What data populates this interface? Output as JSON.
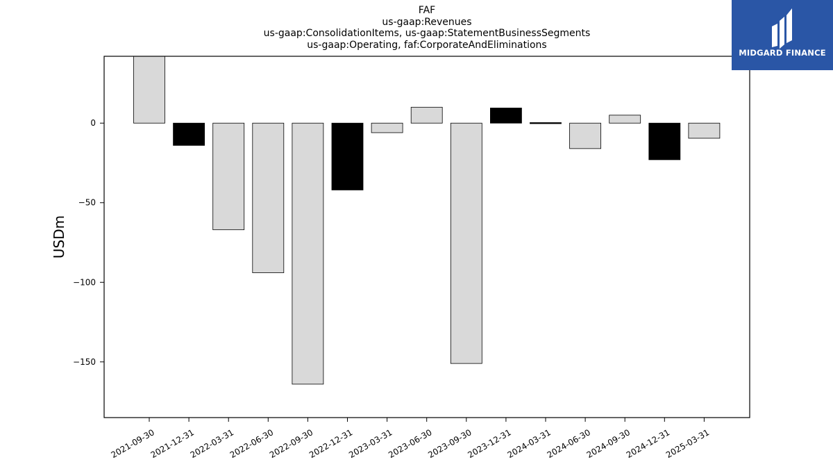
{
  "title_lines": [
    "FAF",
    "us-gaap:Revenues",
    "us-gaap:ConsolidationItems, us-gaap:StatementBusinessSegments",
    "us-gaap:Operating, faf:CorporateAndEliminations"
  ],
  "logo": {
    "text": "MIDGARD FINANCE",
    "background": "#2a56a6"
  },
  "chart_data": {
    "type": "bar",
    "title": "FAF",
    "ylabel": "USDm",
    "ylim": [
      -185,
      42
    ],
    "yticks": [
      0,
      -50,
      -100,
      -150
    ],
    "categories": [
      "2021-09-30",
      "2021-12-31",
      "2022-03-31",
      "2022-06-30",
      "2022-09-30",
      "2022-12-31",
      "2023-03-31",
      "2023-06-30",
      "2023-09-30",
      "2023-12-31",
      "2024-03-31",
      "2024-06-30",
      "2024-09-30",
      "2024-12-31",
      "2025-03-31"
    ],
    "values": [
      43,
      -14,
      -67,
      -94,
      -164,
      -42,
      -6,
      10,
      -151,
      9.5,
      -0.5,
      -16,
      5,
      -23,
      -9.5
    ],
    "colors": [
      "#d9d9d9",
      "#000000",
      "#d9d9d9",
      "#d9d9d9",
      "#d9d9d9",
      "#000000",
      "#d9d9d9",
      "#d9d9d9",
      "#d9d9d9",
      "#000000",
      "#000000",
      "#d9d9d9",
      "#d9d9d9",
      "#000000",
      "#d9d9d9"
    ]
  }
}
